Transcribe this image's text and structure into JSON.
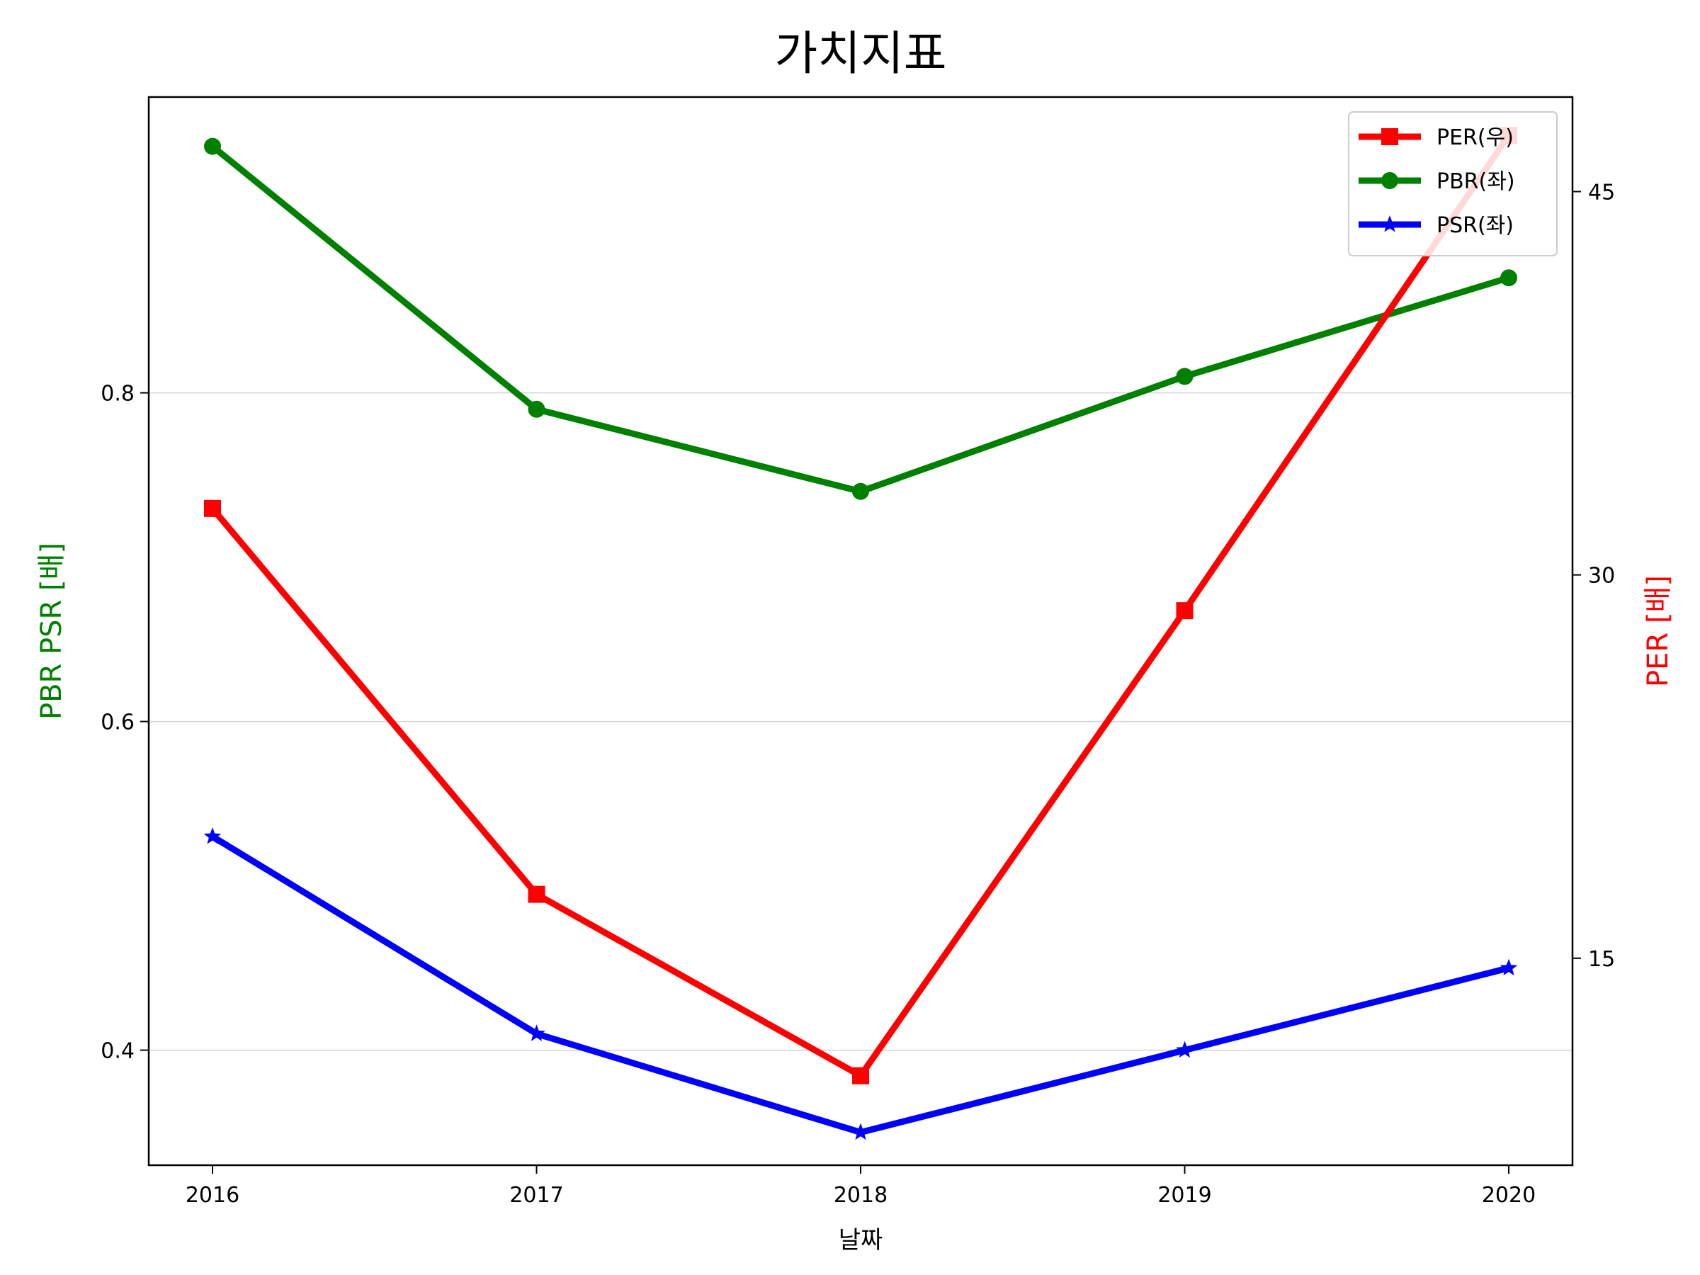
{
  "chart_data": {
    "type": "line",
    "title": "가치지표",
    "xlabel": "날짜",
    "ylabel_left": "PBR PSR [배]",
    "ylabel_right": "PER [배]",
    "x": [
      "2016",
      "2017",
      "2018",
      "2019",
      "2020"
    ],
    "y_left": {
      "lim": [
        0.33,
        0.98
      ],
      "ticks": [
        "0.4",
        "0.6",
        "0.8"
      ],
      "tick_values": [
        0.4,
        0.6,
        0.8
      ]
    },
    "y_right": {
      "lim": [
        6.9,
        48.7
      ],
      "ticks": [
        "15",
        "30",
        "45"
      ],
      "tick_values": [
        15,
        30,
        45
      ]
    },
    "grid": "horizontal-left-ticks",
    "legend_placement": "top-right",
    "series": [
      {
        "name": "PER(우)",
        "axis": "right",
        "color": "#ff0000",
        "marker": "square",
        "values": [
          32.6,
          17.5,
          10.4,
          28.6,
          47.2
        ]
      },
      {
        "name": "PBR(좌)",
        "axis": "left",
        "color": "#008000",
        "marker": "circle",
        "values": [
          0.95,
          0.79,
          0.74,
          0.81,
          0.87
        ]
      },
      {
        "name": "PSR(좌)",
        "axis": "left",
        "color": "#0000ff",
        "marker": "star",
        "values": [
          0.53,
          0.41,
          0.35,
          0.4,
          0.45
        ]
      }
    ]
  }
}
